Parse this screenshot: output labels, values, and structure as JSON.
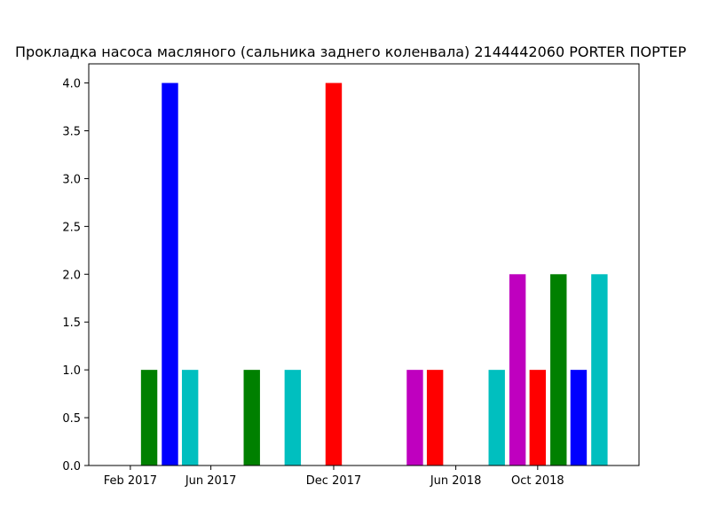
{
  "chart_data": {
    "type": "bar",
    "title": "Прокладка насоса масляного (сальника заднего коленвала) 2144442060 PORTER ПОРТЕР",
    "xlabel": "",
    "ylabel": "",
    "x_axis_type": "date",
    "xlim": [
      "2016-12-01",
      "2019-03-01"
    ],
    "ylim": [
      0,
      4.2
    ],
    "grid": false,
    "legend": "none",
    "x_ticks": [
      "Feb 2017",
      "Jun 2017",
      "Dec 2017",
      "Jun 2018",
      "Oct 2018"
    ],
    "y_ticks": [
      "0.0",
      "0.5",
      "1.0",
      "1.5",
      "2.0",
      "2.5",
      "3.0",
      "3.5",
      "4.0"
    ],
    "bars": [
      {
        "date": "2017-03",
        "value": 1,
        "color": "#008000"
      },
      {
        "date": "2017-04",
        "value": 4,
        "color": "#0000ff"
      },
      {
        "date": "2017-05",
        "value": 1,
        "color": "#00bfbf"
      },
      {
        "date": "2017-08",
        "value": 1,
        "color": "#008000"
      },
      {
        "date": "2017-10",
        "value": 1,
        "color": "#00bfbf"
      },
      {
        "date": "2017-12",
        "value": 4,
        "color": "#ff0000"
      },
      {
        "date": "2018-04",
        "value": 1,
        "color": "#bf00bf"
      },
      {
        "date": "2018-05",
        "value": 1,
        "color": "#ff0000"
      },
      {
        "date": "2018-08",
        "value": 1,
        "color": "#00bfbf"
      },
      {
        "date": "2018-09",
        "value": 2,
        "color": "#bf00bf"
      },
      {
        "date": "2018-10",
        "value": 1,
        "color": "#ff0000"
      },
      {
        "date": "2018-11",
        "value": 2,
        "color": "#008000"
      },
      {
        "date": "2018-12",
        "value": 1,
        "color": "#0000ff"
      },
      {
        "date": "2019-01",
        "value": 2,
        "color": "#00bfbf"
      }
    ]
  }
}
